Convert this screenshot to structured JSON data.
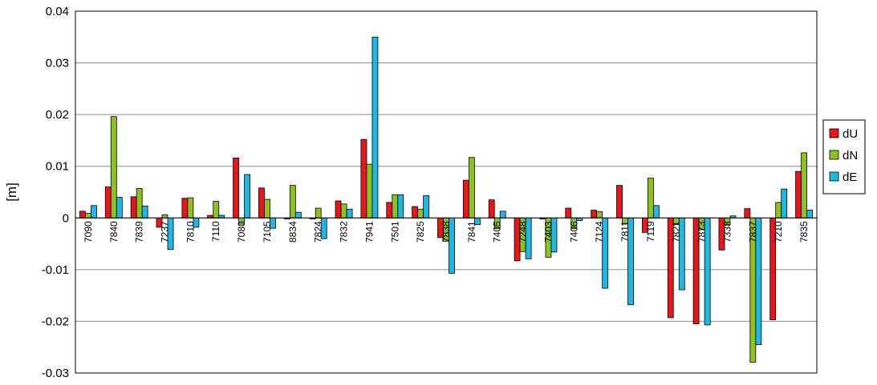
{
  "chart_data": {
    "type": "bar",
    "title": "",
    "xlabel": "",
    "ylabel": "[m]",
    "ylim": [
      -0.03,
      0.04
    ],
    "yticks": [
      0.04,
      0.03,
      0.02,
      0.01,
      0,
      -0.01,
      -0.02,
      -0.03
    ],
    "ytick_labels": [
      "0.04",
      "0.03",
      "0.02",
      "0.01",
      "0",
      "-0.01",
      "-0.02",
      "-0.03"
    ],
    "grid": true,
    "legend_position": "right",
    "categories": [
      "7090",
      "7840",
      "7839",
      "7237",
      "7810",
      "7110",
      "7080",
      "7105",
      "8834",
      "7824",
      "7832",
      "7941",
      "7501",
      "7825",
      "7838",
      "7841",
      "7405",
      "7248",
      "7403",
      "7406",
      "7124",
      "7811",
      "7119",
      "7821",
      "7873",
      "7338",
      "7837",
      "7210",
      "7835"
    ],
    "series": [
      {
        "name": "dU",
        "color": "#e8161b",
        "values": [
          0.0013,
          0.006,
          0.0041,
          -0.0018,
          0.0038,
          0.0005,
          0.0116,
          0.0058,
          -0.0002,
          -0.0002,
          0.0033,
          0.0152,
          0.003,
          0.0022,
          -0.0038,
          0.0073,
          0.0035,
          -0.0083,
          -0.0002,
          0.0019,
          0.0015,
          0.0063,
          -0.0028,
          -0.0193,
          -0.0205,
          -0.0062,
          0.0018,
          -0.0197,
          0.009
        ]
      },
      {
        "name": "dN",
        "color": "#8ec21e",
        "values": [
          0.0009,
          0.0196,
          0.0057,
          0.0006,
          0.0039,
          0.0032,
          -0.0012,
          0.0036,
          0.0063,
          0.0019,
          0.0027,
          0.0104,
          0.0045,
          0.0017,
          -0.0045,
          0.0117,
          -0.0021,
          -0.0065,
          -0.0076,
          -0.0021,
          0.0012,
          -0.0012,
          0.0077,
          -0.0013,
          -0.0023,
          -0.0013,
          -0.0279,
          0.003,
          0.0126
        ]
      },
      {
        "name": "dE",
        "color": "#1eb8e6",
        "values": [
          0.0024,
          0.004,
          0.0023,
          -0.0061,
          -0.0018,
          0.0005,
          0.0084,
          -0.002,
          0.0011,
          -0.004,
          0.0017,
          0.035,
          0.0045,
          0.0043,
          -0.0107,
          -0.0013,
          0.0013,
          -0.0079,
          -0.0066,
          -0.0005,
          -0.0136,
          -0.0168,
          0.0024,
          -0.0139,
          -0.0207,
          0.0004,
          -0.0245,
          0.0056,
          0.0015
        ]
      }
    ]
  }
}
